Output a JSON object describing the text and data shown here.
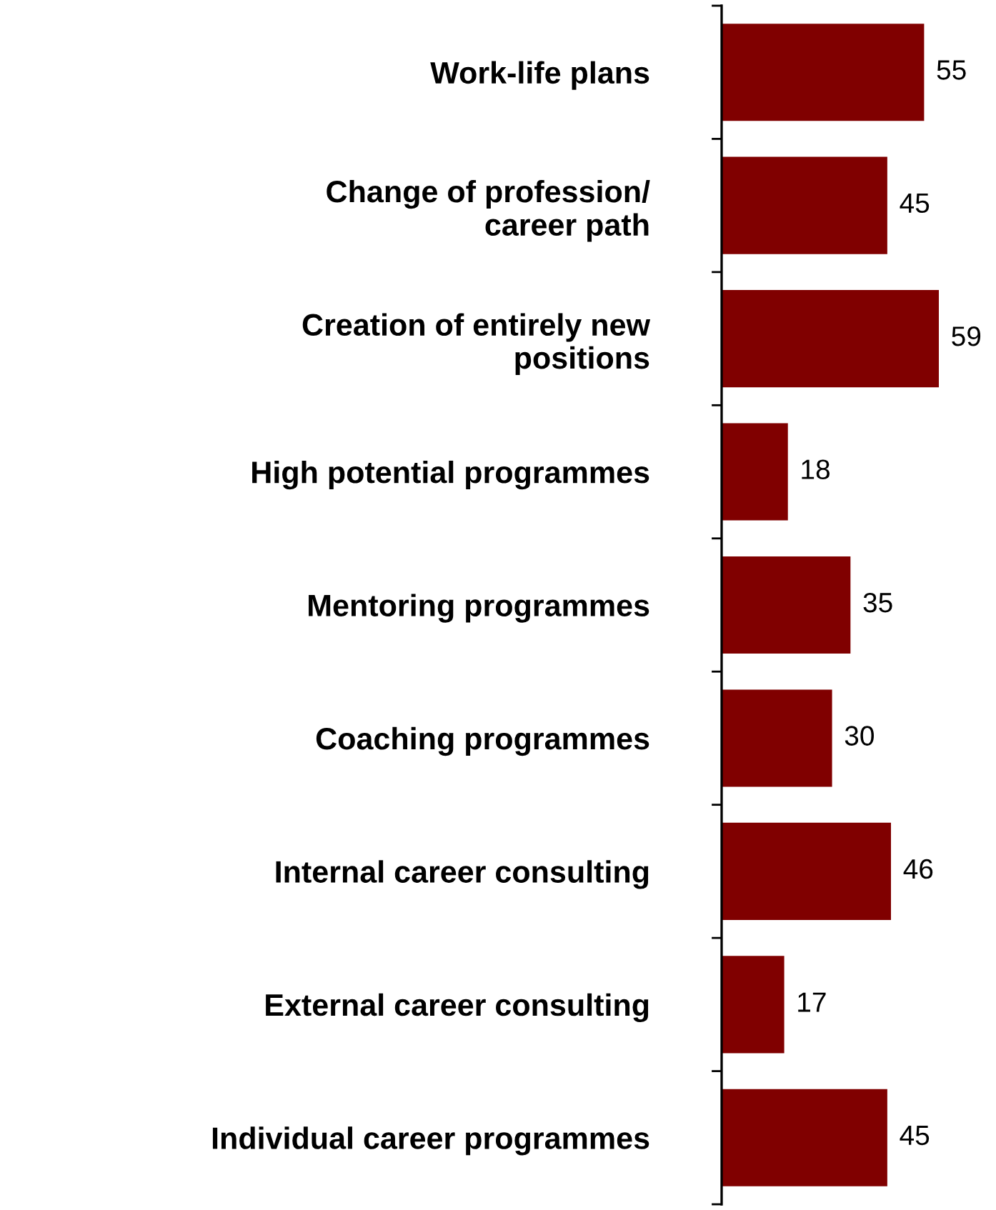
{
  "chart_data": {
    "type": "bar",
    "orientation": "horizontal",
    "data_labels": true,
    "grid": false,
    "legend": false,
    "tick_labels": "y",
    "categories": [
      "Work-life plans",
      "Change of profession/\ncareer path",
      "Creation of entirely new\npositions",
      "High potential programmes",
      "Mentoring programmes",
      "Coaching programmes",
      "Internal career consulting",
      "External career consulting",
      "Individual career programmes"
    ],
    "values": [
      55,
      45,
      59,
      18,
      35,
      30,
      46,
      17,
      45
    ],
    "color": "#800000"
  }
}
